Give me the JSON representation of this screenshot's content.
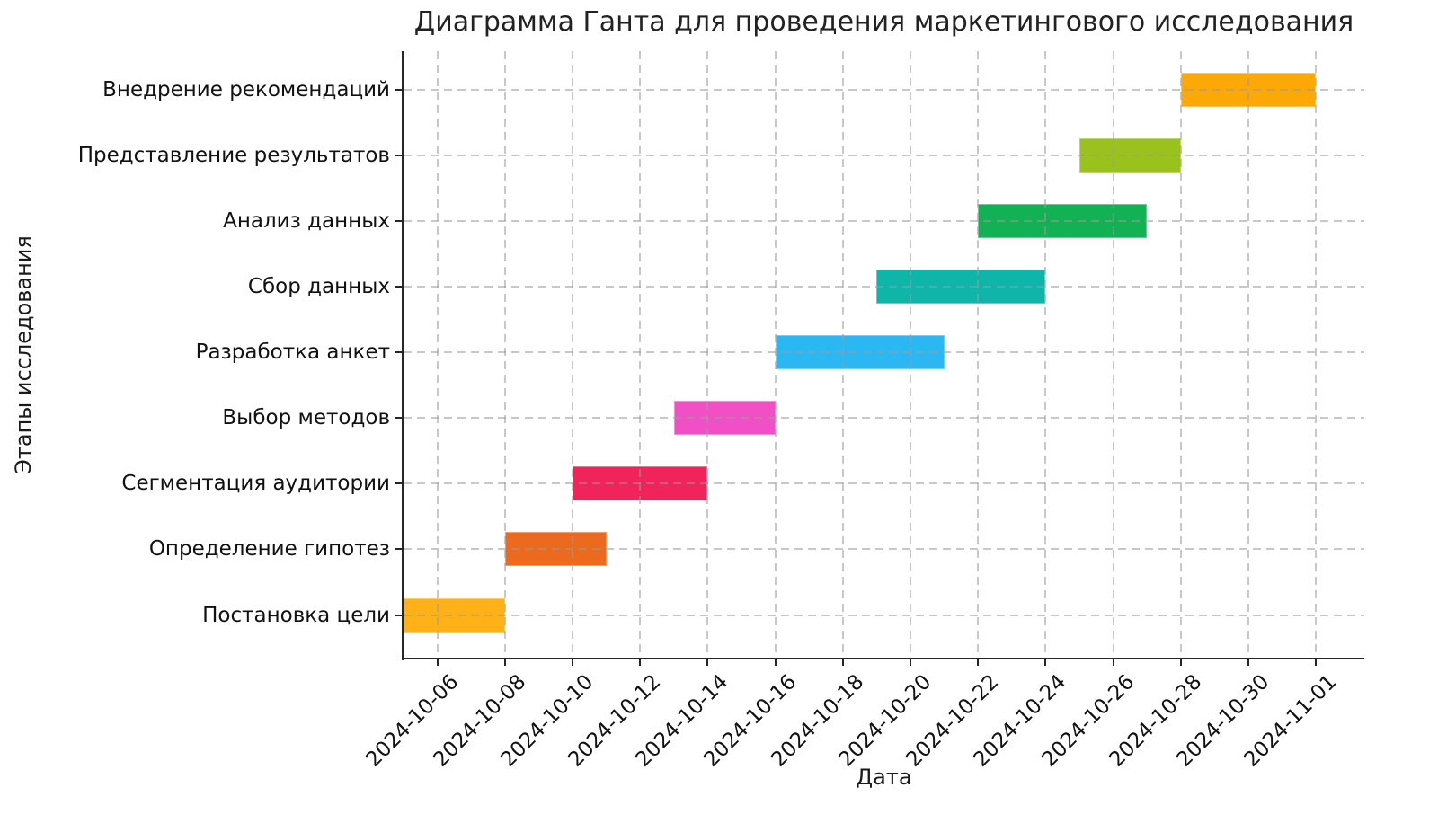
{
  "chart_data": {
    "type": "bar",
    "variant": "gantt",
    "title": "Диаграмма Ганта для проведения маркетингового исследования",
    "xlabel": "Дата",
    "ylabel": "Этапы исследования",
    "grid": true,
    "legend": "none",
    "background": "#ffffff",
    "x_start": "2024-10-05",
    "xlim_days": 28.43,
    "x_tick_labels": [
      "2024-10-06",
      "2024-10-08",
      "2024-10-10",
      "2024-10-12",
      "2024-10-14",
      "2024-10-16",
      "2024-10-18",
      "2024-10-20",
      "2024-10-22",
      "2024-10-24",
      "2024-10-26",
      "2024-10-28",
      "2024-10-30",
      "2024-11-01"
    ],
    "tasks_bottom_to_top": [
      {
        "label": "Постановка цели",
        "start": "2024-10-05",
        "end": "2024-10-08",
        "color": "#FFB116"
      },
      {
        "label": "Определение гипотез",
        "start": "2024-10-08",
        "end": "2024-10-11",
        "color": "#EB6A1E"
      },
      {
        "label": "Сегментация аудитории",
        "start": "2024-10-10",
        "end": "2024-10-14",
        "color": "#F0245B"
      },
      {
        "label": "Выбор методов",
        "start": "2024-10-13",
        "end": "2024-10-16",
        "color": "#F24FC6"
      },
      {
        "label": "Разработка анкет",
        "start": "2024-10-16",
        "end": "2024-10-21",
        "color": "#2BB8F2"
      },
      {
        "label": "Сбор данных",
        "start": "2024-10-19",
        "end": "2024-10-24",
        "color": "#10B5A9"
      },
      {
        "label": "Анализ данных",
        "start": "2024-10-22",
        "end": "2024-10-27",
        "color": "#12B254"
      },
      {
        "label": "Представление результатов",
        "start": "2024-10-25",
        "end": "2024-10-28",
        "color": "#99C21D"
      },
      {
        "label": "Внедрение рекомендаций",
        "start": "2024-10-28",
        "end": "2024-11-01",
        "color": "#FCA908"
      }
    ]
  }
}
